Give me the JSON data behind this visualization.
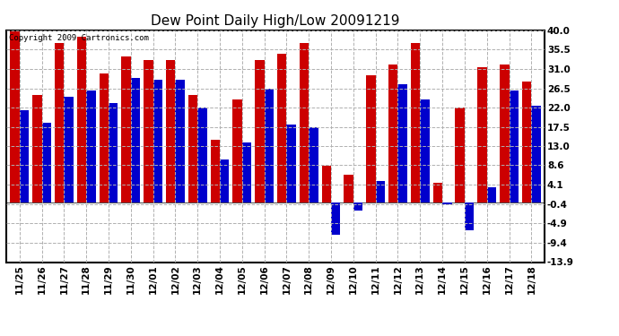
{
  "title": "Dew Point Daily High/Low 20091219",
  "copyright": "Copyright 2009 Cartronics.com",
  "categories": [
    "11/25",
    "11/26",
    "11/27",
    "11/28",
    "11/29",
    "11/30",
    "12/01",
    "12/02",
    "12/03",
    "12/04",
    "12/05",
    "12/06",
    "12/07",
    "12/08",
    "12/09",
    "12/10",
    "12/11",
    "12/12",
    "12/13",
    "12/14",
    "12/15",
    "12/16",
    "12/17",
    "12/18"
  ],
  "highs": [
    40.0,
    25.0,
    37.0,
    38.5,
    30.0,
    34.0,
    33.0,
    33.0,
    25.0,
    14.5,
    24.0,
    33.0,
    34.5,
    37.0,
    8.5,
    6.5,
    29.5,
    32.0,
    37.0,
    4.5,
    22.0,
    31.5,
    32.0,
    28.0
  ],
  "lows": [
    21.5,
    18.5,
    24.5,
    26.0,
    23.0,
    29.0,
    28.5,
    28.5,
    22.0,
    10.0,
    14.0,
    26.5,
    18.0,
    17.5,
    -7.5,
    -2.0,
    5.0,
    27.5,
    24.0,
    -0.5,
    -6.5,
    3.5,
    26.0,
    22.5
  ],
  "bar_color_high": "#cc0000",
  "bar_color_low": "#0000cc",
  "bg_color": "#ffffff",
  "plot_bg_color": "#ffffff",
  "grid_color": "#b0b0b0",
  "yticks": [
    40.0,
    35.5,
    31.0,
    26.5,
    22.0,
    17.5,
    13.0,
    8.6,
    4.1,
    -0.4,
    -4.9,
    -9.4,
    -13.9
  ],
  "ymin": -13.9,
  "ymax": 40.0,
  "bar_width": 0.42,
  "title_fontsize": 11,
  "tick_fontsize": 7.5,
  "copyright_fontsize": 6.5
}
